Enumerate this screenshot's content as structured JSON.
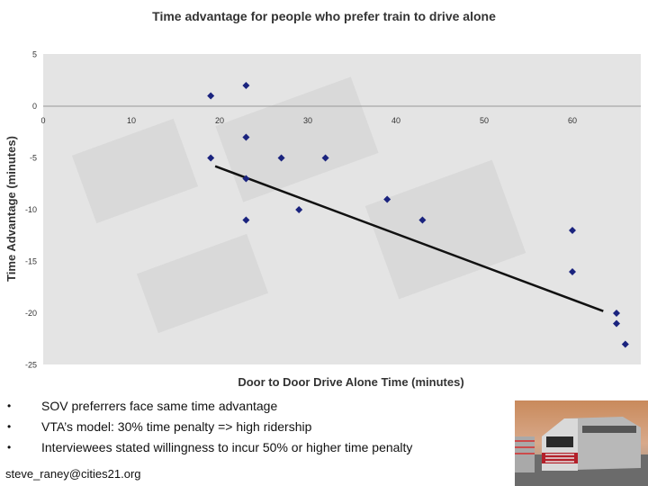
{
  "chart_data": {
    "type": "scatter",
    "title": "Time advantage for people who prefer train to drive alone",
    "xlabel": "Door to Door Drive Alone Time (minutes)",
    "ylabel": "Time Advantage (minutes)",
    "xlim": [
      0,
      70
    ],
    "ylim": [
      -25,
      5
    ],
    "xticks": [
      "0",
      "10",
      "20",
      "30",
      "40",
      "50",
      "60"
    ],
    "yticks": [
      "5",
      "0",
      "-5",
      "-10",
      "-15",
      "-20",
      "-25"
    ],
    "grid": false,
    "legend": "none",
    "points": [
      {
        "x": 19,
        "y": 1
      },
      {
        "x": 23,
        "y": 2
      },
      {
        "x": 23,
        "y": -3
      },
      {
        "x": 19,
        "y": -5
      },
      {
        "x": 27,
        "y": -5
      },
      {
        "x": 32,
        "y": -5
      },
      {
        "x": 23,
        "y": -7
      },
      {
        "x": 29,
        "y": -10
      },
      {
        "x": 23,
        "y": -11
      },
      {
        "x": 39,
        "y": -9
      },
      {
        "x": 43,
        "y": -11
      },
      {
        "x": 60,
        "y": -12
      },
      {
        "x": 60,
        "y": -16
      },
      {
        "x": 65,
        "y": -20
      },
      {
        "x": 65,
        "y": -21
      },
      {
        "x": 66,
        "y": -23
      }
    ],
    "trendline": {
      "x": [
        19.5,
        63.5
      ],
      "y": [
        -5.8,
        -19.8
      ]
    },
    "colors": {
      "marker": "#1a237e",
      "trendline": "#111111",
      "plot_area": "#e4e4e4"
    }
  },
  "bullets": [
    "SOV preferrers face same time advantage",
    "VTA’s model: 30% time penalty => high ridership",
    "Interviewees stated willingness to incur 50% or higher time penalty"
  ],
  "contact": "steve_raney@cities21.org",
  "photo_icon": "train-photo"
}
